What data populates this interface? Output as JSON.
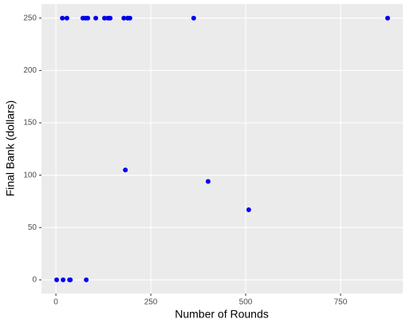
{
  "chart_data": {
    "type": "scatter",
    "x_label": "Number of Rounds",
    "y_label": "Final Bank (dollars)",
    "x": [
      17,
      29,
      71,
      78,
      84,
      105,
      128,
      137,
      143,
      179,
      189,
      195,
      363,
      874,
      183,
      401,
      508,
      2,
      19,
      36,
      38,
      80
    ],
    "values": [
      250,
      250,
      250,
      250,
      250,
      250,
      250,
      250,
      250,
      250,
      250,
      250,
      250,
      250,
      105,
      94,
      67,
      0,
      0,
      0,
      0,
      0
    ],
    "color": "#0000ee",
    "xlim": [
      -38,
      914
    ],
    "ylim": [
      -13,
      263.5
    ],
    "xticks": [
      0,
      250,
      500,
      750
    ],
    "yticks": [
      0,
      50,
      100,
      150,
      200,
      250
    ],
    "grid": true
  }
}
